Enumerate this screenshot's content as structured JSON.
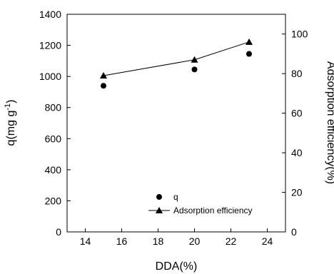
{
  "chart_data": {
    "type": "line",
    "x": [
      15,
      20,
      23
    ],
    "series": [
      {
        "name": "q",
        "axis": "left",
        "marker": "circle",
        "line": false,
        "values": [
          940,
          1045,
          1145
        ],
        "error": [
          12,
          12,
          12
        ]
      },
      {
        "name": "Adsorption efficiency",
        "axis": "right",
        "marker": "triangle",
        "line": true,
        "values": [
          79,
          87,
          96
        ]
      }
    ],
    "xlabel": "DDA(%)",
    "ylabel_left_main": "q(mg g",
    "ylabel_left_sup": "-1",
    "ylabel_left_tail": ")",
    "ylabel_right": "Adsorption efficiency(%)",
    "xlim": [
      13,
      25
    ],
    "ylim_left": [
      0,
      1400
    ],
    "ylim_right": [
      0,
      110
    ],
    "xticks": [
      "14",
      "16",
      "18",
      "20",
      "22",
      "24"
    ],
    "yticks_left": [
      "0",
      "200",
      "400",
      "600",
      "800",
      "1000",
      "1200",
      "1400"
    ],
    "yticks_right": [
      "0",
      "20",
      "40",
      "60",
      "80",
      "100"
    ],
    "legend_position": "bottom-right",
    "grid": false
  }
}
